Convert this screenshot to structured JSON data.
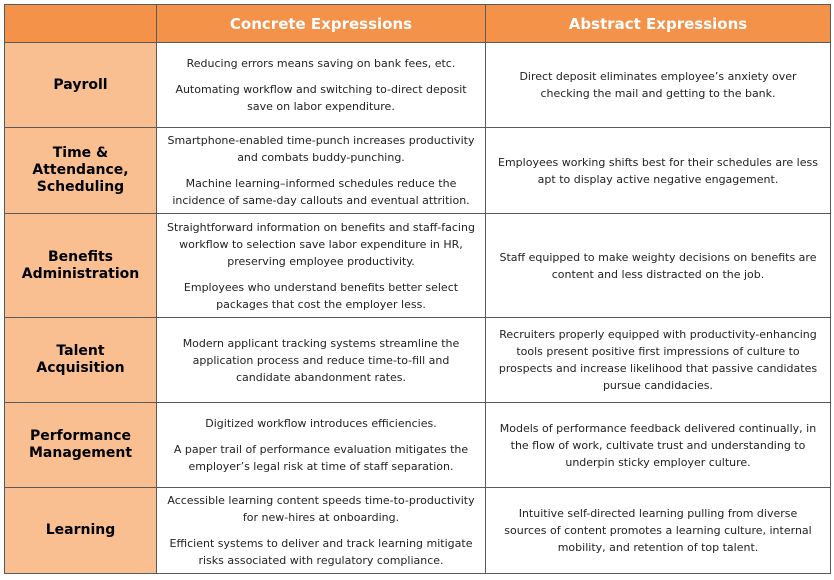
{
  "header": {
    "col_concrete": "Concrete Expressions",
    "col_abstract": "Abstract Expressions"
  },
  "rows": [
    {
      "label": "Payroll",
      "concrete": [
        "Reducing errors means saving on bank fees, etc.",
        "Automating workflow and switching to-direct deposit save on labor expenditure."
      ],
      "abstract": "Direct deposit eliminates employee’s anxiety over checking the mail and getting to the bank."
    },
    {
      "label": "Time & Attendance, Scheduling",
      "concrete": [
        "Smartphone-enabled time-punch increases productivity and combats buddy-punching.",
        "Machine learning–informed schedules reduce the incidence of same-day callouts and eventual attrition."
      ],
      "abstract": "Employees working shifts best for their schedules are less apt to display active negative engagement."
    },
    {
      "label": "Benefits Administration",
      "concrete": [
        "Straightforward information on benefits and staff-facing workflow to selection save labor expenditure in HR, preserving employee productivity.",
        "Employees who understand benefits better select packages that cost the employer less."
      ],
      "abstract": "Staff equipped to make weighty decisions on benefits are content and less distracted on the job."
    },
    {
      "label": "Talent Acquisition",
      "concrete": [
        "Modern applicant tracking systems streamline the application process and reduce time-to-fill and candidate abandonment rates."
      ],
      "abstract": "Recruiters properly equipped with productivity-enhancing tools present positive first impressions of culture to prospects and increase likelihood that passive candidates pursue candidacies."
    },
    {
      "label": "Performance Management",
      "concrete": [
        "Digitized workflow introduces efficiencies.",
        "A paper trail of performance evaluation mitigates the employer’s legal risk at time of staff separation."
      ],
      "abstract": "Models of performance feedback delivered continually, in the flow of work, cultivate trust and understanding to underpin sticky employer culture."
    },
    {
      "label": "Learning",
      "concrete": [
        "Accessible learning content speeds time-to-productivity for new-hires at onboarding.",
        "Efficient systems to deliver and track learning mitigate risks associated with regulatory compliance."
      ],
      "abstract": "Intuitive self-directed learning pulling from diverse sources of content promotes a learning culture, internal mobility, and retention of top talent."
    }
  ],
  "colors": {
    "header_bg": "#f4924a",
    "row_label_bg": "#f9bf90",
    "border": "#5a5a5a"
  }
}
